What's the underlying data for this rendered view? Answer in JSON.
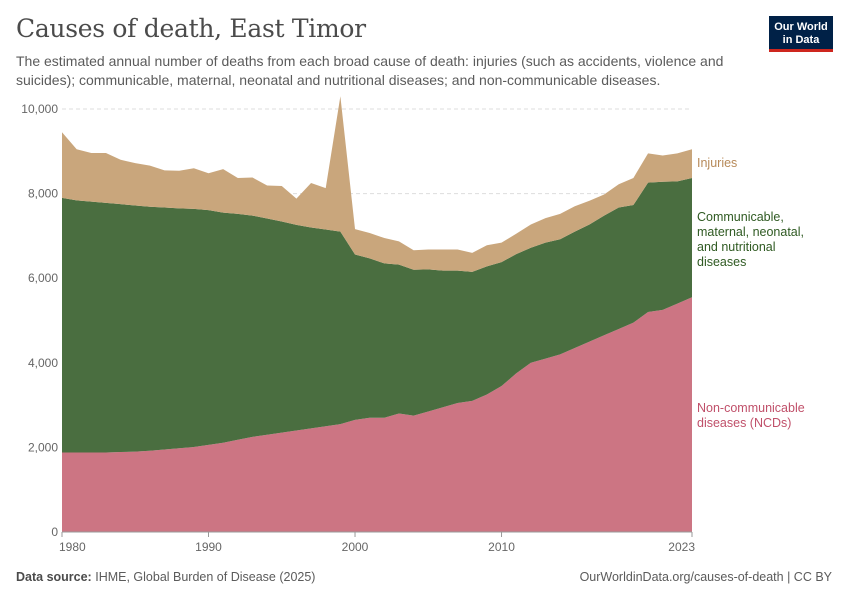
{
  "header": {
    "title": "Causes of death, East Timor",
    "subtitle": "The estimated annual number of deaths from each broad cause of death: injuries (such as accidents, violence and suicides); communicable, maternal, neonatal and nutritional diseases; and non-communicable diseases.",
    "logo_line1": "Our World",
    "logo_line2": "in Data"
  },
  "footer": {
    "source_label": "Data source:",
    "source_text": "IHME, Global Burden of Disease (2025)",
    "url": "OurWorldinData.org/causes-of-death | CC BY"
  },
  "colors": {
    "ncd": "#cc7583",
    "communicable": "#4a6e40",
    "injuries": "#c9a67c",
    "ncd_label": "#c0506a",
    "communicable_label": "#2f5a22",
    "injuries_label": "#b78a5a"
  },
  "chart_data": {
    "type": "area",
    "stacked": true,
    "title": "Causes of death, East Timor",
    "xlabel": "",
    "ylabel": "",
    "xlim": [
      1980,
      2023
    ],
    "ylim": [
      0,
      10000
    ],
    "yticks": [
      0,
      2000,
      4000,
      6000,
      8000,
      10000
    ],
    "ytick_labels": [
      "0",
      "2,000",
      "4,000",
      "6,000",
      "8,000",
      "10,000"
    ],
    "xticks": [
      1980,
      1990,
      2000,
      2010,
      2023
    ],
    "xtick_labels": [
      "1980",
      "1990",
      "2000",
      "2010",
      "2023"
    ],
    "grid": true,
    "x": [
      1980,
      1981,
      1982,
      1983,
      1984,
      1985,
      1986,
      1987,
      1988,
      1989,
      1990,
      1991,
      1992,
      1993,
      1994,
      1995,
      1996,
      1997,
      1998,
      1999,
      2000,
      2001,
      2002,
      2003,
      2004,
      2005,
      2006,
      2007,
      2008,
      2009,
      2010,
      2011,
      2012,
      2013,
      2014,
      2015,
      2016,
      2017,
      2018,
      2019,
      2020,
      2021,
      2022,
      2023
    ],
    "series": [
      {
        "name": "Non-communicable diseases (NCDs)",
        "label_lines": [
          "Non-communicable",
          "diseases (NCDs)"
        ],
        "values": [
          1880,
          1880,
          1880,
          1880,
          1890,
          1900,
          1920,
          1950,
          1980,
          2010,
          2060,
          2110,
          2180,
          2250,
          2300,
          2350,
          2400,
          2450,
          2500,
          2550,
          2650,
          2700,
          2700,
          2800,
          2750,
          2850,
          2950,
          3050,
          3100,
          3250,
          3450,
          3750,
          4000,
          4100,
          4200,
          4350,
          4500,
          4650,
          4800,
          4950,
          5200,
          5250,
          5400,
          5550
        ]
      },
      {
        "name": "Communicable, maternal, neonatal, and nutritional diseases",
        "label_lines": [
          "Communicable,",
          "maternal, neonatal,",
          "and nutritional",
          "diseases"
        ],
        "values": [
          6020,
          5960,
          5930,
          5900,
          5860,
          5820,
          5770,
          5720,
          5670,
          5630,
          5550,
          5440,
          5340,
          5230,
          5110,
          4990,
          4860,
          4750,
          4650,
          4550,
          3910,
          3770,
          3650,
          3520,
          3450,
          3360,
          3230,
          3130,
          3050,
          3030,
          2930,
          2820,
          2720,
          2740,
          2720,
          2750,
          2770,
          2830,
          2870,
          2780,
          3060,
          3030,
          2890,
          2820
        ]
      },
      {
        "name": "Injuries",
        "label_lines": [
          "Injuries"
        ],
        "values": [
          1550,
          1210,
          1150,
          1180,
          1050,
          1000,
          970,
          880,
          890,
          960,
          870,
          1030,
          850,
          900,
          780,
          840,
          620,
          1050,
          980,
          3200,
          600,
          600,
          600,
          550,
          460,
          470,
          500,
          500,
          450,
          500,
          460,
          480,
          550,
          580,
          600,
          600,
          560,
          500,
          550,
          640,
          690,
          620,
          660,
          680
        ]
      }
    ]
  }
}
